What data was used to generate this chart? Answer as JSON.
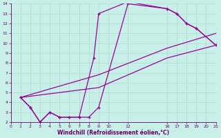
{
  "xlabel": "Windchill (Refroidissement éolien,°C)",
  "bg_color": "#c8f0e8",
  "line_color": "#990099",
  "grid_color": "#aaddcc",
  "axis_label_color": "#660066",
  "tick_label_color": "#660066",
  "line1_x": [
    1,
    2,
    3,
    4,
    5,
    6,
    7,
    8,
    9,
    12,
    16,
    17,
    18,
    19,
    21
  ],
  "line1_y": [
    4.5,
    3.5,
    2.0,
    3.0,
    2.5,
    2.5,
    2.5,
    2.5,
    3.5,
    14.0,
    13.5,
    13.0,
    12.0,
    11.5,
    9.8
  ],
  "line2_x": [
    1,
    2,
    3,
    4,
    5,
    6,
    7,
    8.5,
    9,
    12,
    16,
    17,
    18,
    19,
    21
  ],
  "line2_y": [
    4.5,
    3.5,
    2.0,
    3.0,
    2.5,
    2.5,
    2.5,
    8.5,
    13.0,
    14.2,
    13.5,
    13.0,
    12.0,
    11.5,
    9.8
  ],
  "line3_x": [
    1,
    9,
    16,
    21
  ],
  "line3_y": [
    4.5,
    6.8,
    9.5,
    11.0
  ],
  "line4_x": [
    1,
    9,
    16,
    21
  ],
  "line4_y": [
    4.5,
    5.5,
    8.5,
    9.8
  ],
  "xlim": [
    0,
    21
  ],
  "ylim": [
    2,
    14
  ],
  "xticks": [
    0,
    1,
    2,
    3,
    4,
    5,
    6,
    7,
    8,
    9,
    10,
    12,
    16,
    17,
    18,
    19,
    20,
    21
  ],
  "yticks": [
    2,
    3,
    4,
    5,
    6,
    7,
    8,
    9,
    10,
    11,
    12,
    13,
    14
  ]
}
